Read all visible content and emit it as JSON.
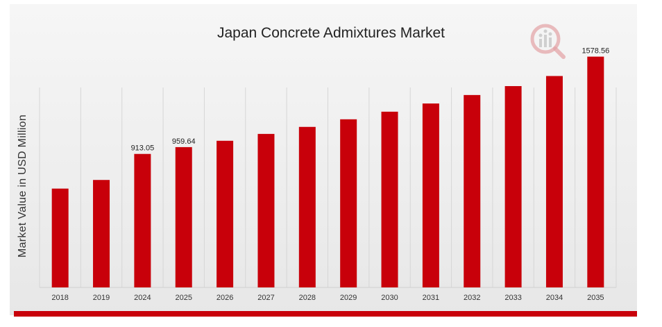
{
  "chart_data": {
    "type": "bar",
    "title": "Japan Concrete Admixtures Market",
    "xlabel": "",
    "ylabel": "Market Value in USD Million",
    "categories": [
      "2018",
      "2019",
      "2024",
      "2025",
      "2026",
      "2027",
      "2028",
      "2029",
      "2030",
      "2031",
      "2032",
      "2033",
      "2034",
      "2035"
    ],
    "values": [
      676,
      735,
      913.05,
      959.64,
      1003,
      1050,
      1098,
      1150,
      1202,
      1258,
      1316,
      1377,
      1446,
      1578.56
    ],
    "data_labels": [
      "",
      "",
      "913.05",
      "959.64",
      "",
      "",
      "",
      "",
      "",
      "",
      "",
      "",
      "",
      "1578.56"
    ],
    "ylim": [
      0,
      1700
    ],
    "grid": "vertical",
    "bar_color": "#c8000a"
  }
}
